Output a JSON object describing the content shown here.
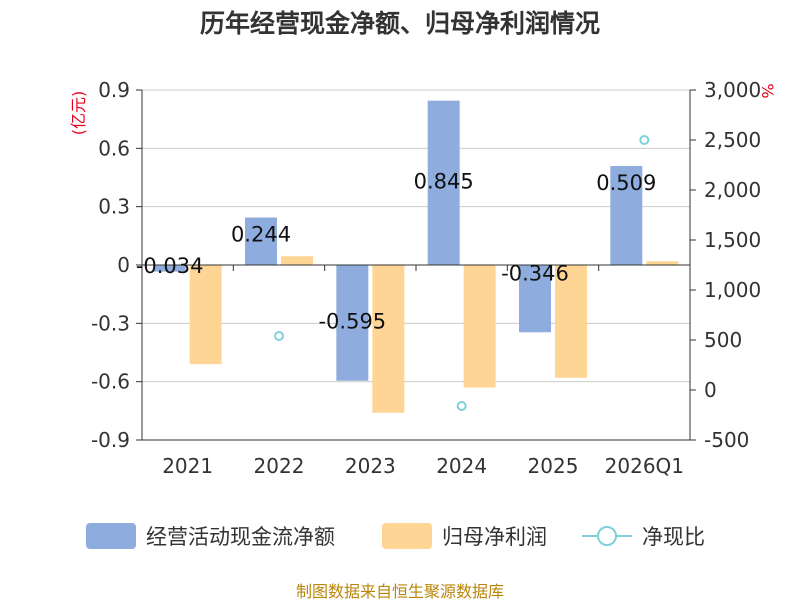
{
  "chart_data": {
    "type": "bar",
    "title": "历年经营现金净额、归母净利润情况",
    "categories": [
      "2021",
      "2022",
      "2023",
      "2024",
      "2025",
      "2026Q1"
    ],
    "left_axis": {
      "unit": "(亿元)",
      "ylim": [
        -0.9,
        0.9
      ],
      "ticks": [
        "0.9",
        "0.6",
        "0.3",
        "0",
        "-0.3",
        "-0.6",
        "-0.9"
      ]
    },
    "right_axis": {
      "unit": "%",
      "ylim": [
        -500,
        3000
      ],
      "ticks": [
        "3,000",
        "2,500",
        "2,000",
        "1,500",
        "1,000",
        "500",
        "0",
        "-500"
      ]
    },
    "series": [
      {
        "name": "经营活动现金流净额",
        "axis": "left",
        "kind": "bar",
        "color": "#8eadde",
        "values": [
          -0.034,
          0.244,
          -0.595,
          0.845,
          -0.346,
          0.509
        ],
        "labels": [
          "-0.034",
          "0.244",
          "-0.595",
          "0.845",
          "-0.346",
          "0.509"
        ]
      },
      {
        "name": "归母净利润",
        "axis": "left",
        "kind": "bar",
        "color": "#ffd596",
        "values": [
          -0.51,
          0.045,
          -0.76,
          -0.63,
          -0.58,
          0.02
        ]
      },
      {
        "name": "净现比",
        "axis": "right",
        "kind": "scatter",
        "color": "#7fcfdc",
        "values": [
          null,
          540,
          null,
          -160,
          null,
          2500
        ]
      }
    ],
    "grid": true,
    "legend": "bottom"
  },
  "source": "制图数据来自恒生聚源数据库"
}
